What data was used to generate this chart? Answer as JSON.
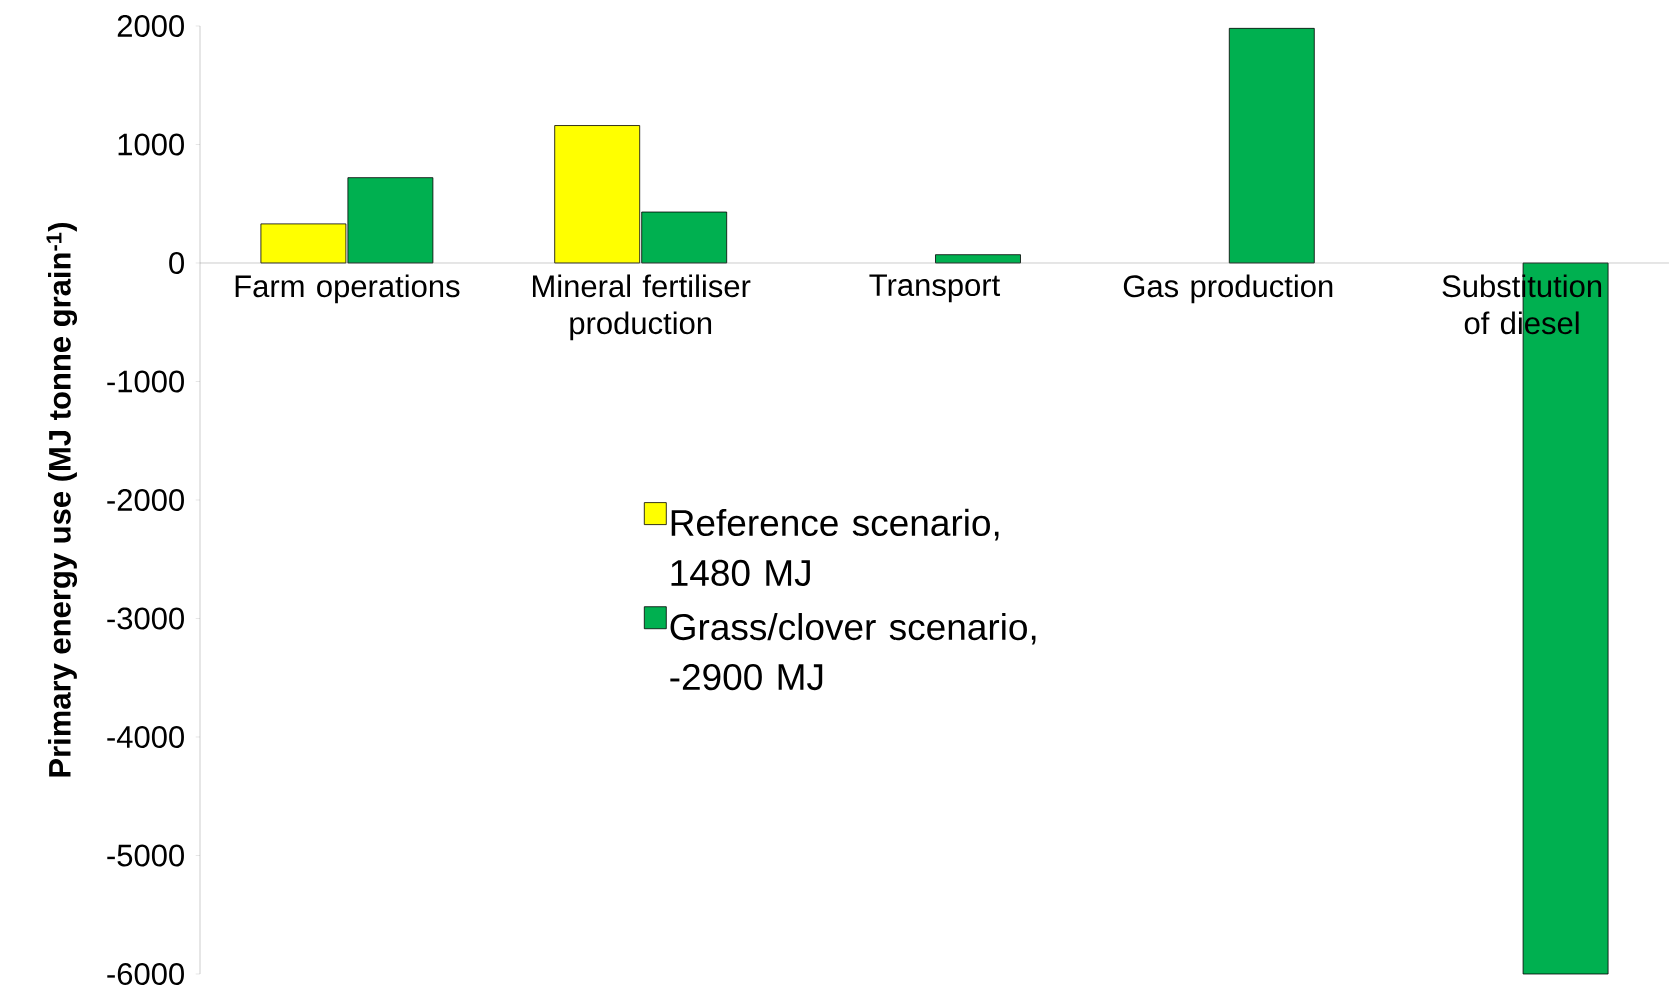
{
  "chart_data": {
    "type": "bar",
    "ylabel": "Primary energy use (MJ tonne grain$^{-1}$)",
    "categories": [
      "Farm operations",
      "Mineral fertiliser production",
      "Transport",
      "Gas production",
      "Substitution of diesel"
    ],
    "series": [
      {
        "name": "Reference  scenario, 1480 MJ",
        "color": "#ffff00",
        "values": [
          330,
          1160,
          null,
          null,
          null
        ]
      },
      {
        "name": "Grass/clover scenario, -2900 MJ",
        "color": "#00b050",
        "values": [
          720,
          430,
          70,
          1980,
          -6000
        ]
      }
    ],
    "ylim": [
      -6000,
      2000
    ],
    "yticks": [
      -6000,
      -5000,
      -4000,
      -3000,
      -2000,
      -1000,
      0,
      1000,
      2000
    ],
    "legend": "center",
    "grid": false
  }
}
